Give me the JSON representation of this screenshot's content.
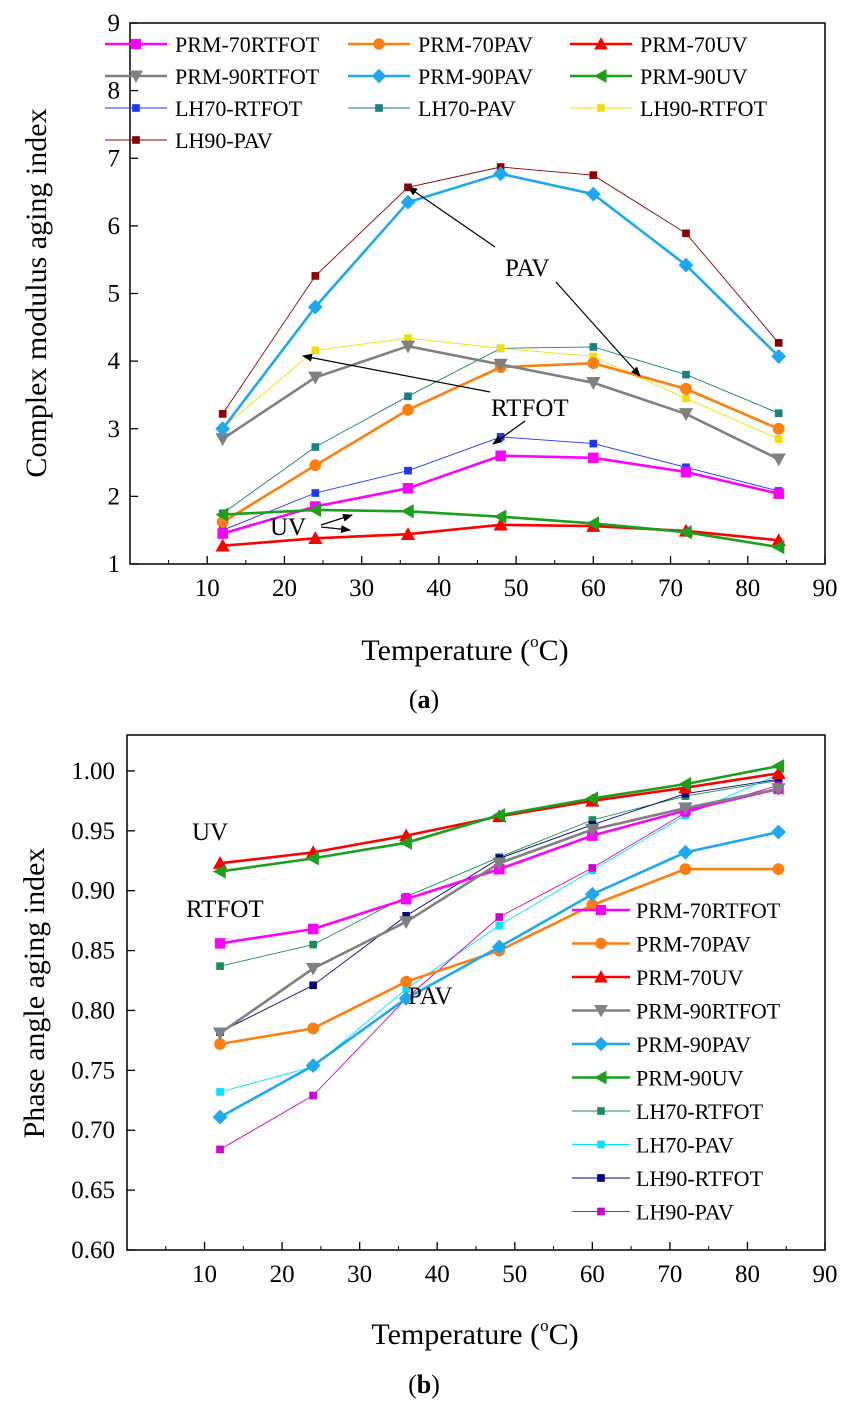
{
  "chart_data": [
    {
      "type": "line",
      "panel_label": "a",
      "xlabel": "Temperature (°C)",
      "xlabel_main": "Temperature (",
      "xlabel_sup": "o",
      "xlabel_end": "C)",
      "ylabel": "Complex modulus aging index",
      "xlim": [
        0,
        90
      ],
      "ylim": [
        1,
        9
      ],
      "xticks": [
        10,
        20,
        30,
        40,
        50,
        60,
        70,
        80,
        90
      ],
      "yticks": [
        1,
        2,
        3,
        4,
        5,
        6,
        7,
        8,
        9
      ],
      "x": [
        12,
        24,
        36,
        48,
        60,
        72,
        84
      ],
      "legend_position": "top",
      "annotations": [
        "PAV",
        "RTFOT",
        "UV"
      ],
      "series": [
        {
          "name": "PRM-70RTFOT",
          "color": "#ff00ff",
          "marker": "square",
          "style": "main",
          "values": [
            1.45,
            1.85,
            2.12,
            2.6,
            2.57,
            2.36,
            2.04
          ]
        },
        {
          "name": "PRM-70PAV",
          "color": "#ff7f0e",
          "marker": "circle",
          "style": "main",
          "values": [
            1.62,
            2.46,
            3.28,
            3.91,
            3.97,
            3.59,
            3.0
          ]
        },
        {
          "name": "PRM-70UV",
          "color": "#ff0000",
          "marker": "triangle-up",
          "style": "main",
          "values": [
            1.27,
            1.38,
            1.44,
            1.58,
            1.56,
            1.49,
            1.35
          ]
        },
        {
          "name": "PRM-90RTFOT",
          "color": "#808080",
          "marker": "triangle-down",
          "style": "main",
          "values": [
            2.85,
            3.76,
            4.22,
            3.95,
            3.68,
            3.22,
            2.55
          ]
        },
        {
          "name": "PRM-90PAV",
          "color": "#1ea8f0",
          "marker": "diamond",
          "style": "main",
          "values": [
            3.0,
            4.8,
            6.35,
            6.77,
            6.47,
            5.42,
            4.07
          ]
        },
        {
          "name": "PRM-90UV",
          "color": "#1aa01a",
          "marker": "triangle-left",
          "style": "main",
          "values": [
            1.73,
            1.8,
            1.78,
            1.7,
            1.6,
            1.47,
            1.25
          ]
        },
        {
          "name": "LH70-RTFOT",
          "color": "#1e35ff",
          "marker": "square",
          "style": "thin",
          "values": [
            1.5,
            2.05,
            2.38,
            2.88,
            2.78,
            2.43,
            2.08
          ]
        },
        {
          "name": "LH70-PAV",
          "color": "#1a8080",
          "marker": "square",
          "style": "thin",
          "values": [
            1.75,
            2.73,
            3.48,
            4.19,
            4.21,
            3.8,
            3.23
          ]
        },
        {
          "name": "LH90-RTFOT",
          "color": "#f0e000",
          "marker": "square",
          "style": "thin",
          "values": [
            3.02,
            4.16,
            4.34,
            4.19,
            4.07,
            3.45,
            2.85
          ]
        },
        {
          "name": "LH90-PAV",
          "color": "#8b0000",
          "marker": "square",
          "style": "thin",
          "values": [
            3.22,
            5.26,
            6.57,
            6.87,
            6.75,
            5.89,
            4.27
          ]
        }
      ]
    },
    {
      "type": "line",
      "panel_label": "b",
      "xlabel": "Temperature (°C)",
      "xlabel_main": "Temperature (",
      "xlabel_sup": "o",
      "xlabel_end": "C)",
      "ylabel": "Phase angle aging index",
      "xlim": [
        0,
        90
      ],
      "ylim": [
        0.6,
        1.03
      ],
      "xticks": [
        10,
        20,
        30,
        40,
        50,
        60,
        70,
        80,
        90
      ],
      "yticks": [
        "0.60",
        "0.65",
        "0.70",
        "0.75",
        "0.80",
        "0.85",
        "0.90",
        "0.95",
        "1.00"
      ],
      "x": [
        12,
        24,
        36,
        48,
        60,
        72,
        84
      ],
      "legend_position": "bottom-right",
      "annotations": [
        "UV",
        "RTFOT",
        "PAV"
      ],
      "series": [
        {
          "name": "PRM-70RTFOT",
          "color": "#ff00ff",
          "marker": "square",
          "style": "main",
          "values": [
            0.856,
            0.868,
            0.893,
            0.918,
            0.946,
            0.967,
            0.985
          ]
        },
        {
          "name": "PRM-70PAV",
          "color": "#ff7f0e",
          "marker": "circle",
          "style": "main",
          "values": [
            0.772,
            0.785,
            0.824,
            0.85,
            0.888,
            0.918,
            0.918
          ]
        },
        {
          "name": "PRM-70UV",
          "color": "#ff0000",
          "marker": "triangle-up",
          "style": "main",
          "values": [
            0.923,
            0.932,
            0.946,
            0.962,
            0.975,
            0.986,
            0.998
          ]
        },
        {
          "name": "PRM-90RTFOT",
          "color": "#808080",
          "marker": "triangle-down",
          "style": "main",
          "values": [
            0.781,
            0.835,
            0.874,
            0.923,
            0.951,
            0.969,
            0.985
          ]
        },
        {
          "name": "PRM-90PAV",
          "color": "#1ea8f0",
          "marker": "diamond",
          "style": "main",
          "values": [
            0.711,
            0.754,
            0.81,
            0.853,
            0.897,
            0.932,
            0.949
          ]
        },
        {
          "name": "PRM-90UV",
          "color": "#1aa01a",
          "marker": "triangle-left",
          "style": "main",
          "values": [
            0.916,
            0.927,
            0.94,
            0.963,
            0.977,
            0.989,
            1.004
          ]
        },
        {
          "name": "LH70-RTFOT",
          "color": "#1a8c5a",
          "marker": "square",
          "style": "thin",
          "values": [
            0.837,
            0.855,
            0.895,
            0.928,
            0.959,
            0.979,
            0.992
          ]
        },
        {
          "name": "LH70-PAV",
          "color": "#00e5ff",
          "marker": "square",
          "style": "thin",
          "values": [
            0.732,
            0.753,
            0.818,
            0.871,
            0.917,
            0.963,
            0.997
          ]
        },
        {
          "name": "LH90-RTFOT",
          "color": "#000080",
          "marker": "square",
          "style": "thin",
          "values": [
            0.782,
            0.821,
            0.879,
            0.927,
            0.955,
            0.981,
            0.993
          ]
        },
        {
          "name": "LH90-PAV",
          "color": "#cc00cc",
          "marker": "square",
          "style": "thin",
          "values": [
            0.684,
            0.729,
            0.81,
            0.878,
            0.919,
            0.965,
            0.988
          ]
        }
      ]
    }
  ]
}
